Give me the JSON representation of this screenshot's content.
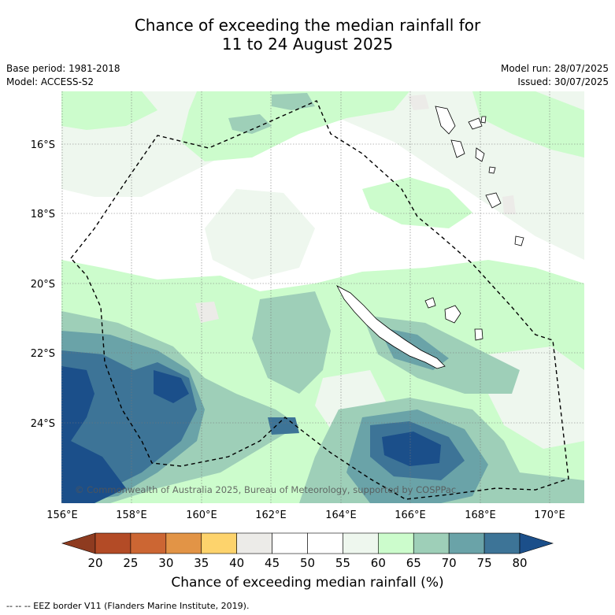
{
  "title_line1": "Chance of exceeding the median rainfall for",
  "title_line2": "11 to 24 August 2025",
  "base_period": "Base period: 1981-2018",
  "model": "Model: ACCESS-S2",
  "model_run": "Model run: 28/07/2025",
  "issued": "Issued: 30/07/2025",
  "lat_labels": [
    "16°S",
    "18°S",
    "20°S",
    "22°S",
    "24°S"
  ],
  "lon_labels": [
    "156°E",
    "158°E",
    "160°E",
    "162°E",
    "164°E",
    "166°E",
    "168°E",
    "170°E"
  ],
  "copyright": "© Commonwealth of Australia 2025, Bureau of Meteorology, supported by COSPPac",
  "colorbar": {
    "ticks": [
      "20",
      "25",
      "30",
      "35",
      "40",
      "45",
      "50",
      "55",
      "60",
      "65",
      "70",
      "75",
      "80"
    ],
    "colors": [
      "#8e3b20",
      "#b34b26",
      "#cc6633",
      "#e29446",
      "#fdd36c",
      "#ecebe8",
      "#ffffff",
      "#ffffff",
      "#eef7ee",
      "#ccfccc",
      "#9ecfb8",
      "#6aa3a8",
      "#3d7497",
      "#1b4f8a"
    ],
    "label": "Chance of exceeding median rainfall (%)"
  },
  "legend_note": "--  --  -- EEZ border V11 (Flanders Marine Institute, 2019)."
}
